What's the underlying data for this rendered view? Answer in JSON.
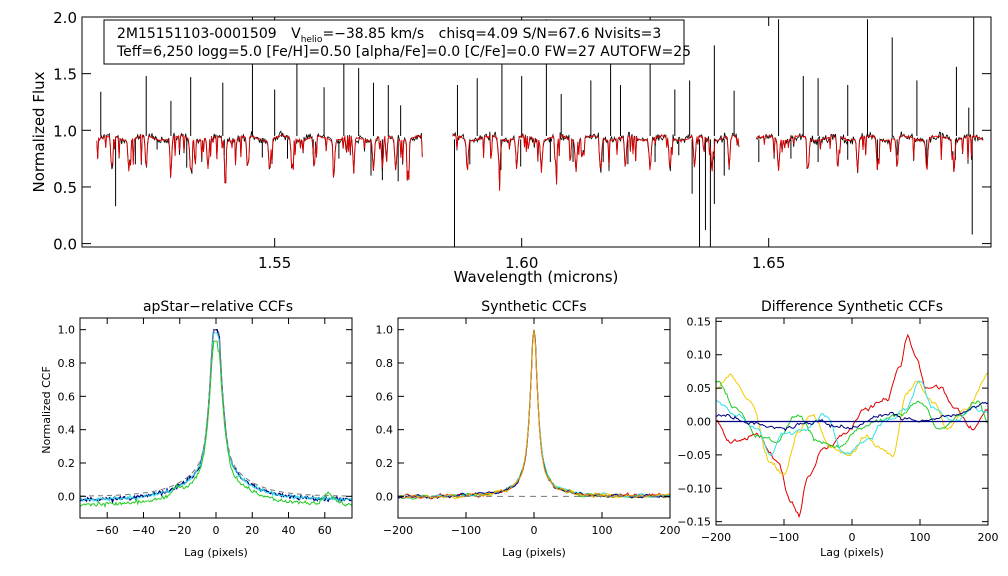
{
  "colors": {
    "black": "#000000",
    "red": "#e00000",
    "green": "#22cc22",
    "cyan": "#33e0e8",
    "navy": "#000080",
    "orange": "#ff9900",
    "yellow": "#f0cc00",
    "gray": "#777777"
  },
  "chart_data": [
    {
      "name": "spectrum",
      "type": "line",
      "title": "",
      "xlabel": "Wavelength (microns)",
      "ylabel": "Normalized Flux",
      "xlim": [
        1.511,
        1.695
      ],
      "ylim": [
        -0.03,
        2.0
      ],
      "xticks": [
        1.55,
        1.6,
        1.65
      ],
      "xtick_labels": [
        "1.55",
        "1.60",
        "1.65"
      ],
      "yticks": [
        0.0,
        0.5,
        1.0,
        1.5,
        2.0
      ],
      "ytick_labels": [
        "0.0",
        "0.5",
        "1.0",
        "1.5",
        "2.0"
      ],
      "chips": [
        [
          1.514,
          1.58
        ],
        [
          1.586,
          1.644
        ],
        [
          1.6475,
          1.6935
        ]
      ],
      "series": [
        {
          "name": "observed",
          "color": "black"
        },
        {
          "name": "model",
          "color": "red"
        }
      ],
      "absorption_lines": [
        1.517,
        1.5205,
        1.524,
        1.529,
        1.533,
        1.5365,
        1.54,
        1.5445,
        1.549,
        1.5535,
        1.558,
        1.562,
        1.566,
        1.57,
        1.5718,
        1.5745,
        1.577,
        1.589,
        1.5955,
        1.599,
        1.604,
        1.607,
        1.611,
        1.616,
        1.621,
        1.626,
        1.63,
        1.635,
        1.6385,
        1.642,
        1.652,
        1.658,
        1.664,
        1.668,
        1.672,
        1.676,
        1.682,
        1.6875
      ],
      "spikes": [
        [
          1.5148,
          1.34
        ],
        [
          1.524,
          1.48
        ],
        [
          1.529,
          1.26
        ],
        [
          1.533,
          1.47
        ],
        [
          1.5395,
          1.42
        ],
        [
          1.5455,
          2.0
        ],
        [
          1.55,
          1.36
        ],
        [
          1.5545,
          1.74
        ],
        [
          1.56,
          1.38
        ],
        [
          1.564,
          1.6
        ],
        [
          1.567,
          1.55
        ],
        [
          1.57,
          1.42
        ],
        [
          1.573,
          1.4
        ],
        [
          1.5755,
          1.22
        ],
        [
          1.587,
          1.4
        ],
        [
          1.591,
          1.46
        ],
        [
          1.596,
          1.58
        ],
        [
          1.6,
          1.48
        ],
        [
          1.605,
          1.98
        ],
        [
          1.608,
          1.32
        ],
        [
          1.614,
          1.44
        ],
        [
          1.618,
          1.6
        ],
        [
          1.62,
          1.4
        ],
        [
          1.626,
          2.0
        ],
        [
          1.631,
          1.36
        ],
        [
          1.634,
          1.44
        ],
        [
          1.639,
          1.75
        ],
        [
          1.643,
          1.35
        ],
        [
          1.652,
          1.98
        ],
        [
          1.657,
          1.48
        ],
        [
          1.66,
          1.46
        ],
        [
          1.666,
          1.4
        ],
        [
          1.67,
          1.98
        ],
        [
          1.675,
          1.82
        ],
        [
          1.68,
          1.44
        ],
        [
          1.688,
          1.56
        ],
        [
          1.6905,
          1.2
        ],
        [
          1.6915,
          2.0
        ]
      ],
      "dips": [
        [
          1.5178,
          0.33
        ],
        [
          1.5218,
          0.7
        ],
        [
          1.5262,
          0.83
        ],
        [
          1.5322,
          0.67
        ],
        [
          1.5398,
          0.78
        ],
        [
          1.5475,
          0.76
        ],
        [
          1.5526,
          0.75
        ],
        [
          1.5578,
          0.79
        ],
        [
          1.563,
          0.75
        ],
        [
          1.5695,
          0.6
        ],
        [
          1.5718,
          0.56
        ],
        [
          1.575,
          0.55
        ],
        [
          1.5864,
          -0.03
        ],
        [
          1.5895,
          0.7
        ],
        [
          1.5958,
          0.65
        ],
        [
          1.5998,
          0.68
        ],
        [
          1.6058,
          0.72
        ],
        [
          1.6104,
          0.72
        ],
        [
          1.6165,
          0.72
        ],
        [
          1.6215,
          0.7
        ],
        [
          1.627,
          0.72
        ],
        [
          1.6318,
          0.78
        ],
        [
          1.6345,
          0.44
        ],
        [
          1.636,
          -0.03
        ],
        [
          1.6372,
          0.12
        ],
        [
          1.6382,
          -0.03
        ],
        [
          1.639,
          0.35
        ],
        [
          1.641,
          0.6
        ],
        [
          1.648,
          0.72
        ],
        [
          1.6545,
          0.75
        ],
        [
          1.66,
          0.72
        ],
        [
          1.666,
          0.74
        ],
        [
          1.672,
          0.72
        ],
        [
          1.676,
          0.78
        ],
        [
          1.682,
          0.7
        ],
        [
          1.6878,
          0.74
        ],
        [
          1.6912,
          0.08
        ]
      ],
      "annotation": {
        "line1_id": "2M15151103-0001509",
        "line1_vprefix": "V",
        "line1_vsub": "helio",
        "line1_vvalue": "=−38.85 km/s",
        "line1_stats": "chisq=4.09  S/N=67.6  Nvisits=3",
        "line2": "Teff=6,250 logg=5.0 [Fe/H]=0.50 [alpha/Fe]=0.0 [C/Fe]=0.0 FW=27 AUTOFW=25"
      }
    },
    {
      "name": "apstar-ccf",
      "type": "line",
      "title": "apStar−relative CCFs",
      "xlabel": "Lag (pixels)",
      "ylabel": "Normalized CCF",
      "xlim": [
        -75,
        75
      ],
      "ylim": [
        -0.13,
        1.07
      ],
      "xticks": [
        -60,
        -40,
        -20,
        0,
        20,
        40,
        60
      ],
      "xtick_labels": [
        "−60",
        "−40",
        "−20",
        "0",
        "20",
        "40",
        "60"
      ],
      "yticks": [
        0.0,
        0.2,
        0.4,
        0.6,
        0.8,
        1.0
      ],
      "ytick_labels": [
        "0.0",
        "0.2",
        "0.4",
        "0.6",
        "0.8",
        "1.0"
      ],
      "series": [
        {
          "name": "sum",
          "color": "navy",
          "peak": 1.0,
          "width": 3.0,
          "seed": 11
        },
        {
          "name": "visit-1",
          "color": "cyan",
          "peak": 0.98,
          "width": 3.1,
          "seed": 23
        },
        {
          "name": "visit-2",
          "color": "green",
          "peak": 0.93,
          "width": 3.3,
          "seed": 37
        },
        {
          "name": "gaussian-fit",
          "color": "gray",
          "dashed": true,
          "peak": 1.0,
          "width": 3.0
        }
      ]
    },
    {
      "name": "synthetic-ccf",
      "type": "line",
      "title": "Synthetic CCFs",
      "xlabel": "Lag (pixels)",
      "ylabel": "",
      "xlim": [
        -200,
        200
      ],
      "ylim": [
        -0.13,
        1.07
      ],
      "xticks": [
        -200,
        -100,
        0,
        100,
        200
      ],
      "xtick_labels": [
        "−200",
        "−100",
        "0",
        "100",
        "200"
      ],
      "yticks": [
        0.0,
        0.2,
        0.4,
        0.6,
        0.8,
        1.0
      ],
      "ytick_labels": [
        "0.0",
        "0.2",
        "0.4",
        "0.6",
        "0.8",
        "1.0"
      ],
      "series": [
        {
          "name": "model-red",
          "color": "red",
          "seed": 51
        },
        {
          "name": "model-yellow",
          "color": "yellow",
          "seed": 52
        },
        {
          "name": "model-green",
          "color": "green",
          "seed": 53
        },
        {
          "name": "model-cyan",
          "color": "cyan",
          "seed": 54
        },
        {
          "name": "model-navy",
          "color": "navy",
          "seed": 55
        },
        {
          "name": "model-orange",
          "color": "orange",
          "seed": 56
        },
        {
          "name": "baseline",
          "color": "gray",
          "dashed": true
        }
      ]
    },
    {
      "name": "difference-ccf",
      "type": "line",
      "title": "Difference Synthetic CCFs",
      "xlabel": "Lag (pixels)",
      "ylabel": "",
      "xlim": [
        -200,
        200
      ],
      "ylim": [
        -0.155,
        0.155
      ],
      "xticks": [
        -200,
        -100,
        0,
        100,
        200
      ],
      "xtick_labels": [
        "−200",
        "−100",
        "0",
        "100",
        "200"
      ],
      "yticks": [
        -0.15,
        -0.1,
        -0.05,
        0.0,
        0.05,
        0.1,
        0.15
      ],
      "ytick_labels": [
        "−0.15",
        "−0.10",
        "−0.05",
        "0.00",
        "0.05",
        "0.10",
        "0.15"
      ],
      "series": [
        {
          "name": "diff-red",
          "color": "red",
          "seed": 71,
          "anchors": [
            [
              -200,
              0.0
            ],
            [
              -180,
              -0.03
            ],
            [
              -140,
              -0.02
            ],
            [
              -110,
              -0.06
            ],
            [
              -90,
              -0.12
            ],
            [
              -78,
              -0.14
            ],
            [
              -65,
              -0.08
            ],
            [
              -40,
              -0.04
            ],
            [
              -10,
              -0.02
            ],
            [
              20,
              0.02
            ],
            [
              50,
              0.03
            ],
            [
              70,
              0.08
            ],
            [
              82,
              0.13
            ],
            [
              92,
              0.1
            ],
            [
              110,
              0.05
            ],
            [
              130,
              0.05
            ],
            [
              150,
              0.02
            ],
            [
              180,
              -0.01
            ],
            [
              200,
              0.02
            ]
          ]
        },
        {
          "name": "diff-yellow",
          "color": "yellow",
          "seed": 72,
          "anchors": [
            [
              -200,
              0.05
            ],
            [
              -180,
              0.07
            ],
            [
              -150,
              0.03
            ],
            [
              -120,
              -0.06
            ],
            [
              -100,
              -0.08
            ],
            [
              -80,
              -0.02
            ],
            [
              -60,
              0.01
            ],
            [
              -30,
              -0.04
            ],
            [
              -5,
              -0.05
            ],
            [
              20,
              -0.02
            ],
            [
              40,
              -0.04
            ],
            [
              60,
              -0.05
            ],
            [
              80,
              0.04
            ],
            [
              95,
              0.06
            ],
            [
              120,
              0.03
            ],
            [
              140,
              -0.01
            ],
            [
              170,
              0.02
            ],
            [
              200,
              0.07
            ]
          ]
        },
        {
          "name": "diff-green",
          "color": "green",
          "seed": 73,
          "anchors": [
            [
              -200,
              0.06
            ],
            [
              -170,
              0.02
            ],
            [
              -140,
              -0.02
            ],
            [
              -110,
              -0.03
            ],
            [
              -80,
              0.01
            ],
            [
              -50,
              -0.03
            ],
            [
              -20,
              -0.04
            ],
            [
              10,
              -0.01
            ],
            [
              40,
              0.0
            ],
            [
              70,
              0.01
            ],
            [
              100,
              0.03
            ],
            [
              130,
              -0.01
            ],
            [
              160,
              0.01
            ],
            [
              185,
              0.03
            ],
            [
              200,
              0.0
            ]
          ]
        },
        {
          "name": "diff-cyan",
          "color": "cyan",
          "seed": 74,
          "anchors": [
            [
              -200,
              0.03
            ],
            [
              -170,
              0.01
            ],
            [
              -140,
              -0.01
            ],
            [
              -120,
              -0.05
            ],
            [
              -105,
              -0.02
            ],
            [
              -70,
              -0.01
            ],
            [
              -40,
              0.01
            ],
            [
              -10,
              -0.05
            ],
            [
              20,
              -0.03
            ],
            [
              50,
              0.0
            ],
            [
              80,
              0.02
            ],
            [
              100,
              0.06
            ],
            [
              120,
              0.02
            ],
            [
              150,
              0.0
            ],
            [
              180,
              0.02
            ],
            [
              200,
              0.01
            ]
          ]
        },
        {
          "name": "diff-navy",
          "color": "navy",
          "seed": 75,
          "anchors": [
            [
              -200,
              0.01
            ],
            [
              -150,
              0.0
            ],
            [
              -100,
              -0.01
            ],
            [
              -50,
              0.0
            ],
            [
              0,
              -0.01
            ],
            [
              50,
              0.01
            ],
            [
              100,
              0.0
            ],
            [
              150,
              0.01
            ],
            [
              200,
              0.03
            ]
          ]
        },
        {
          "name": "zero-line",
          "color": "navy",
          "flat": true
        }
      ]
    }
  ]
}
